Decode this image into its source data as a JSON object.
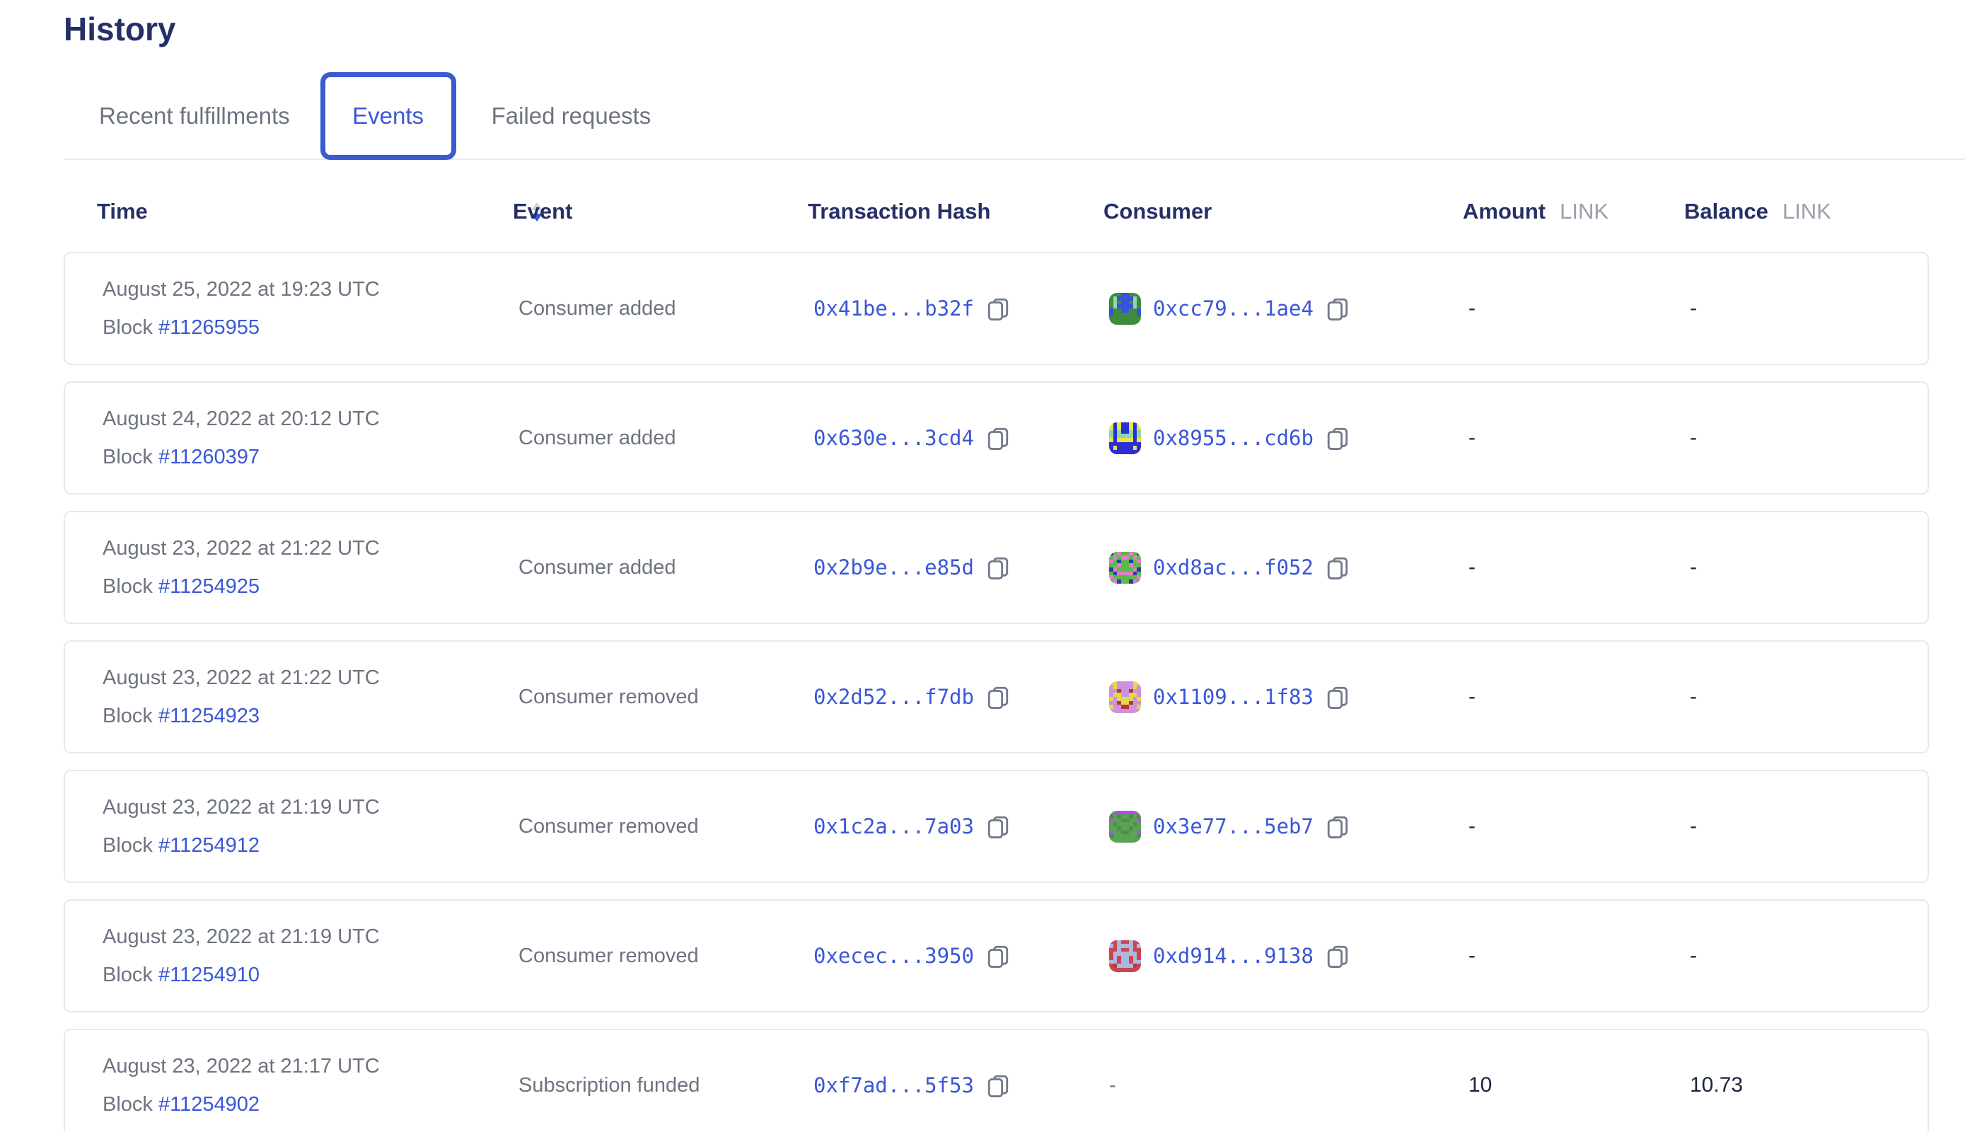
{
  "page": {
    "title": "History"
  },
  "tabs": [
    {
      "label": "Recent fulfillments",
      "active": false
    },
    {
      "label": "Events",
      "active": true
    },
    {
      "label": "Failed requests",
      "active": false
    }
  ],
  "table": {
    "columns": {
      "time": "Time",
      "event": "Event",
      "tx": "Transaction Hash",
      "consumer": "Consumer",
      "amount": "Amount",
      "balance": "Balance",
      "unit": "LINK"
    },
    "sort": {
      "column": "Time",
      "direction": "desc"
    },
    "rows": [
      {
        "date": "August 25, 2022 at 19:23 UTC",
        "block_label": "Block",
        "block": "#11265955",
        "event": "Consumer added",
        "tx_hash": "0x41be...b32f",
        "consumer": {
          "address": "0xcc79...1ae4",
          "avatar": {
            "palette": {
              "g": "#3f8b3c",
              "b": "#3752dd",
              "t": "#96d4ae"
            },
            "pixels": [
              "gggbbggg",
              "gtbbbbtg",
              "gtgbbgtg",
              "gtbbbbtg",
              "bggbbggb",
              "bggggggb",
              "gggggggg",
              "gggggggg"
            ]
          }
        },
        "amount": "-",
        "balance": "-"
      },
      {
        "date": "August 24, 2022 at 20:12 UTC",
        "block_label": "Block",
        "block": "#11260397",
        "event": "Consumer added",
        "tx_hash": "0x630e...3cd4",
        "consumer": {
          "address": "0x8955...cd6b",
          "avatar": {
            "palette": {
              "b": "#2b2fd4",
              "y": "#e8e34c",
              "n": "#8fd9a8"
            },
            "pixels": [
              "ybybbyby",
              "ybybbyby",
              "nbnbbnbn",
              "nbnnnnbn",
              "ybyyyyby",
              "bbbbbbbb",
              "bybbbbyb",
              "bbbbbbbb"
            ]
          }
        },
        "amount": "-",
        "balance": "-"
      },
      {
        "date": "August 23, 2022 at 21:22 UTC",
        "block_label": "Block",
        "block": "#11254925",
        "event": "Consumer added",
        "tx_hash": "0x2b9e...e85d",
        "consumer": {
          "address": "0xd8ac...f052",
          "avatar": {
            "palette": {
              "g": "#5db84d",
              "p": "#e27fc3",
              "n": "#2b3f9e"
            },
            "pixels": [
              "ngpggpgn",
              "gpgppgpg",
              "pgnggngp",
              "ggpggpgg",
              "npggggpn",
              "gnppppng",
              "pggggggp",
              "gpnggnpg"
            ]
          }
        },
        "amount": "-",
        "balance": "-"
      },
      {
        "date": "August 23, 2022 at 21:22 UTC",
        "block_label": "Block",
        "block": "#11254923",
        "event": "Consumer removed",
        "tx_hash": "0x2d52...f7db",
        "consumer": {
          "address": "0x1109...1f83",
          "avatar": {
            "palette": {
              "l": "#cf90dd",
              "y": "#dfd94e",
              "r": "#b03a31"
            },
            "pixels": [
              "yyllllyy",
              "lyllllyl",
              "llrllrll",
              "lyyllyyl",
              "ylyyyyly",
              "llryyrll",
              "yllrrlly",
              "llllllll"
            ]
          }
        },
        "amount": "-",
        "balance": "-"
      },
      {
        "date": "August 23, 2022 at 21:19 UTC",
        "block_label": "Block",
        "block": "#11254912",
        "event": "Consumer removed",
        "tx_hash": "0x1c2a...7a03",
        "consumer": {
          "address": "0x3e77...5eb7",
          "avatar": {
            "palette": {
              "g": "#5aa254",
              "d": "#4b8f4c",
              "p": "#b44fdf"
            },
            "pixels": [
              "gppppppg",
              "dgdggdgd",
              "pggddggp",
              "gdggggdg",
              "ggdggdgg",
              "pggddggp",
              "dggggggd",
              "gggggggg"
            ]
          }
        },
        "amount": "-",
        "balance": "-"
      },
      {
        "date": "August 23, 2022 at 21:19 UTC",
        "block_label": "Block",
        "block": "#11254910",
        "event": "Consumer removed",
        "tx_hash": "0xecec...3950",
        "consumer": {
          "address": "0xd914...9138",
          "avatar": {
            "palette": {
              "r": "#cc4552",
              "l": "#aab9dc",
              "d": "#b4394a"
            },
            "pixels": [
              "rrlrrlrr",
              "lrllllrl",
              "rrlrrlrr",
              "rllllllr",
              "rlrllrlr",
              "llrllrll",
              "rdlllldr",
              "rrrrrrrr"
            ]
          }
        },
        "amount": "-",
        "balance": "-"
      },
      {
        "date": "August 23, 2022 at 21:17 UTC",
        "block_label": "Block",
        "block": "#11254902",
        "event": "Subscription funded",
        "tx_hash": "0xf7ad...5f53",
        "consumer": null,
        "consumer_placeholder": "-",
        "amount": "10",
        "balance": "10.73"
      }
    ]
  },
  "icons": {
    "copy": "copy-icon",
    "sort_asc": "sort-asc-arrow-icon",
    "sort_desc": "sort-desc-arrow-icon"
  },
  "colors": {
    "heading": "#262f66",
    "link_blue": "#3a57d7",
    "tab_border_blue": "#3c5bd2",
    "body_gray": "#6d7380",
    "unit_gray": "#9aa0ab",
    "card_border": "#e7e9ee",
    "value_dark": "#1d2440"
  }
}
